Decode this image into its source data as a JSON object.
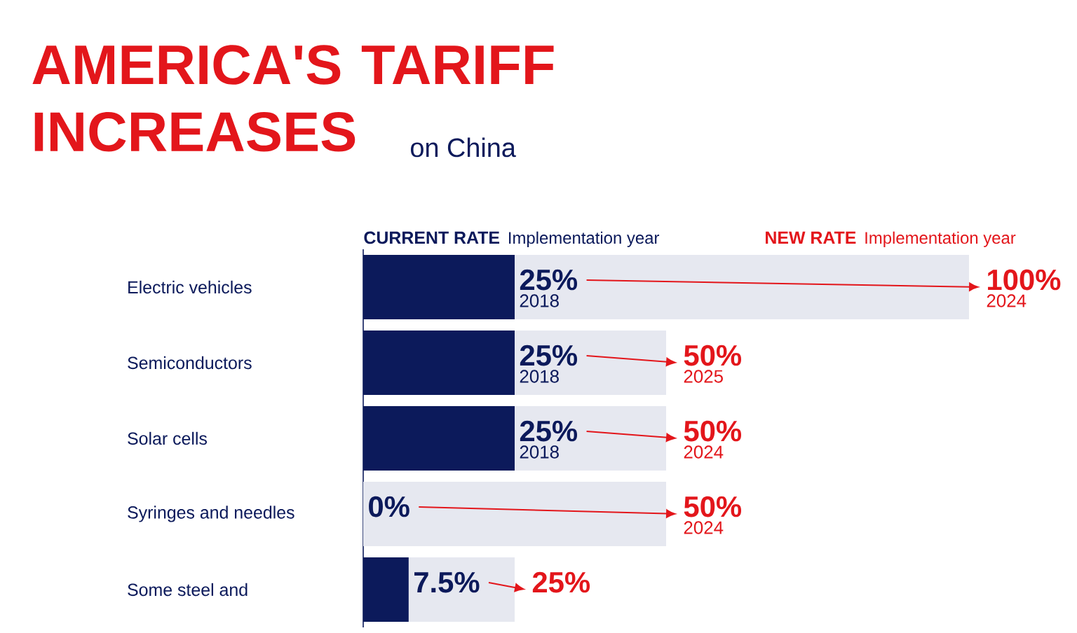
{
  "chart_data": {
    "type": "bar",
    "orientation": "horizontal",
    "stacked": true,
    "title": "AMERICA'S TARIFF INCREASES",
    "subtitle": "on China",
    "categories": [
      "Electric vehicles",
      "Semiconductors",
      "Solar cells",
      "Syringes and needles",
      "Some steel and"
    ],
    "series": [
      {
        "name": "CURRENT RATE",
        "color": "#0c1a5b",
        "values": [
          25,
          25,
          25,
          0,
          7.5
        ],
        "value_labels": [
          "25%",
          "25%",
          "25%",
          "0%",
          "7.5%"
        ]
      },
      {
        "name": "NEW RATE",
        "color": "#e6e8f0",
        "values": [
          75,
          25,
          25,
          50,
          17.5
        ]
      }
    ],
    "totals": [
      "100%",
      "50%",
      "50%",
      "50%",
      "25%"
    ],
    "tick_labels": "y",
    "annotations": [
      "Implementation year",
      "Implementation year",
      {
        "text": "2018",
        "x": 25,
        "y": "Electric vehicles"
      },
      {
        "text": "2024",
        "x": 100,
        "y": "Electric vehicles"
      },
      {
        "text": "2018",
        "x": 25,
        "y": "Semiconductors"
      },
      {
        "text": "2025",
        "x": 50,
        "y": "Semiconductors"
      },
      {
        "text": "2018",
        "x": 25,
        "y": "Solar cells"
      },
      {
        "text": "2024",
        "x": 50,
        "y": "Solar cells"
      },
      {
        "text": "2024",
        "x": 50,
        "y": "Syringes and needles"
      }
    ]
  }
}
